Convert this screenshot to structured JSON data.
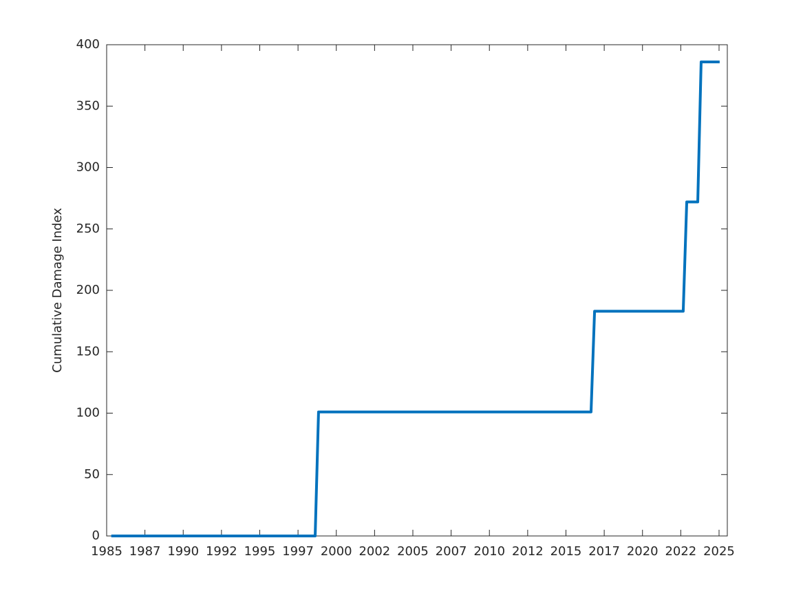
{
  "chart_data": {
    "type": "line",
    "ylabel": "Cumulative Damage Index",
    "x": [
      1985.3,
      1998.62,
      1998.84,
      2016.64,
      2016.87,
      2022.66,
      2022.89,
      2023.61,
      2023.83,
      2025.04
    ],
    "series": [
      {
        "name": "Cumulative Damage Index",
        "color": "#0072bd",
        "values": [
          0,
          0,
          101,
          101,
          183,
          183,
          272,
          272,
          386,
          386
        ]
      }
    ],
    "xlim": [
      1985,
      2025.54
    ],
    "ylim": [
      0,
      400
    ],
    "xticks": [
      1985,
      {
        "value": 1987.5,
        "label": "1987"
      },
      1990,
      {
        "value": 1992.5,
        "label": "1992"
      },
      1995,
      {
        "value": 1997.5,
        "label": "1997"
      },
      2000,
      {
        "value": 2002.5,
        "label": "2002"
      },
      2005,
      {
        "value": 2007.5,
        "label": "2007"
      },
      2010,
      {
        "value": 2012.5,
        "label": "2012"
      },
      2015,
      {
        "value": 2017.5,
        "label": "2017"
      },
      2020,
      {
        "value": 2022.5,
        "label": "2022"
      },
      2025
    ],
    "yticks": [
      0,
      50,
      100,
      150,
      200,
      250,
      300,
      350,
      400
    ],
    "grid": false
  }
}
